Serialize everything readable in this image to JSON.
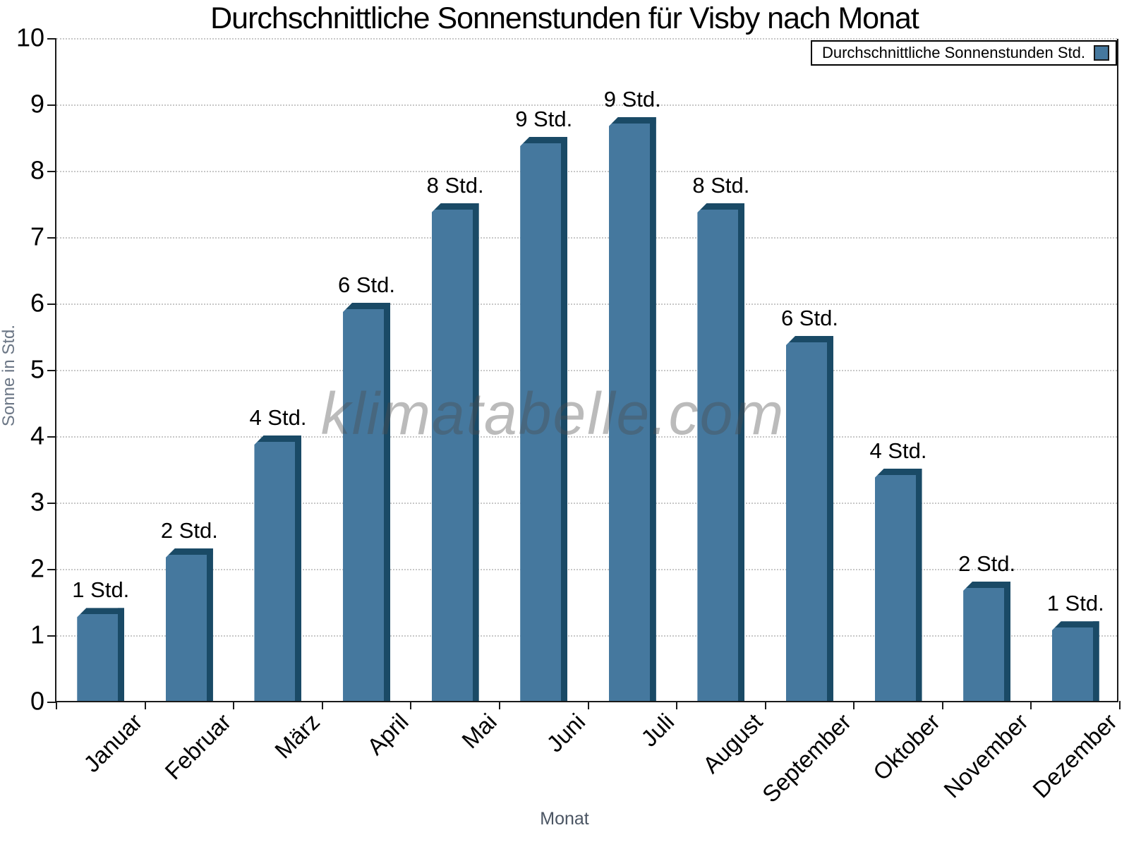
{
  "page": {
    "title": "Durchschnittliche Sonnenstunden für Visby nach Monat",
    "watermark": "klimatabelle.com"
  },
  "legend": {
    "label": "Durchschnittliche Sonnenstunden Std."
  },
  "axes": {
    "y_title": "Sonne in Std.",
    "x_title": "Monat"
  },
  "chart_data": {
    "type": "bar",
    "title": "Durchschnittliche Sonnenstunden für Visby nach Monat",
    "categories": [
      "Januar",
      "Februar",
      "März",
      "April",
      "Mai",
      "Juni",
      "Juli",
      "August",
      "September",
      "Oktober",
      "November",
      "Dezember"
    ],
    "series": [
      {
        "name": "Durchschnittliche Sonnenstunden Std.",
        "values": [
          1.4,
          2.3,
          4.0,
          6.0,
          7.5,
          8.5,
          8.8,
          7.5,
          5.5,
          3.5,
          1.8,
          1.2
        ]
      }
    ],
    "bar_labels": [
      "1 Std.",
      "2 Std.",
      "4 Std.",
      "6 Std.",
      "8 Std.",
      "9 Std.",
      "9 Std.",
      "8 Std.",
      "6 Std.",
      "4 Std.",
      "2 Std.",
      "1 Std."
    ],
    "xlabel": "Monat",
    "ylabel": "Sonne in Std.",
    "ylim": [
      0,
      10
    ],
    "yticks": [
      0,
      1,
      2,
      3,
      4,
      5,
      6,
      7,
      8,
      9,
      10
    ],
    "grid": "horizontal-dotted",
    "legend_position": "top-right",
    "colors": {
      "bar_fill": "#45789e",
      "bar_edge": "#1a4a66",
      "gridline": "#c8c8c8",
      "axis": "#1a1a1a",
      "axis_title_text": "#6b7685",
      "watermark_text": "rgba(75,75,75,0.38)"
    }
  }
}
